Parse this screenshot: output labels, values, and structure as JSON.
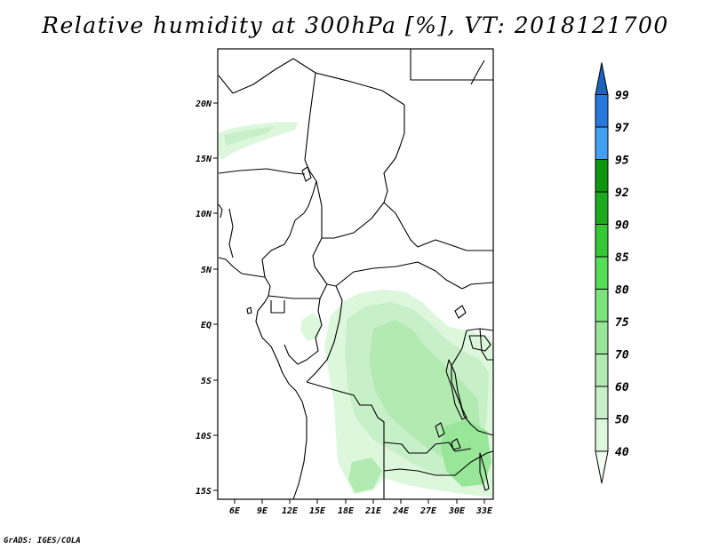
{
  "title": "Relative humidity at 300hPa [%], VT: 2018121700",
  "credit": "GrADS: IGES/COLA",
  "map": {
    "lon_ticks": [
      "6E",
      "9E",
      "12E",
      "15E",
      "18E",
      "21E",
      "24E",
      "27E",
      "30E",
      "33E"
    ],
    "lat_ticks": [
      "20N",
      "15N",
      "10N",
      "5N",
      "EQ",
      "5S",
      "10S",
      "15S"
    ]
  },
  "colorbar": {
    "labels": [
      "40",
      "50",
      "60",
      "70",
      "75",
      "80",
      "85",
      "90",
      "92",
      "95",
      "97",
      "99"
    ],
    "colors": [
      "#f0fdf0",
      "#dcf7dc",
      "#c8f0c8",
      "#b2eab2",
      "#98e698",
      "#7ce47c",
      "#56dc56",
      "#34c834",
      "#1eaa1e",
      "#0e960e",
      "#429ef0",
      "#2878dc",
      "#1a64c0"
    ]
  }
}
